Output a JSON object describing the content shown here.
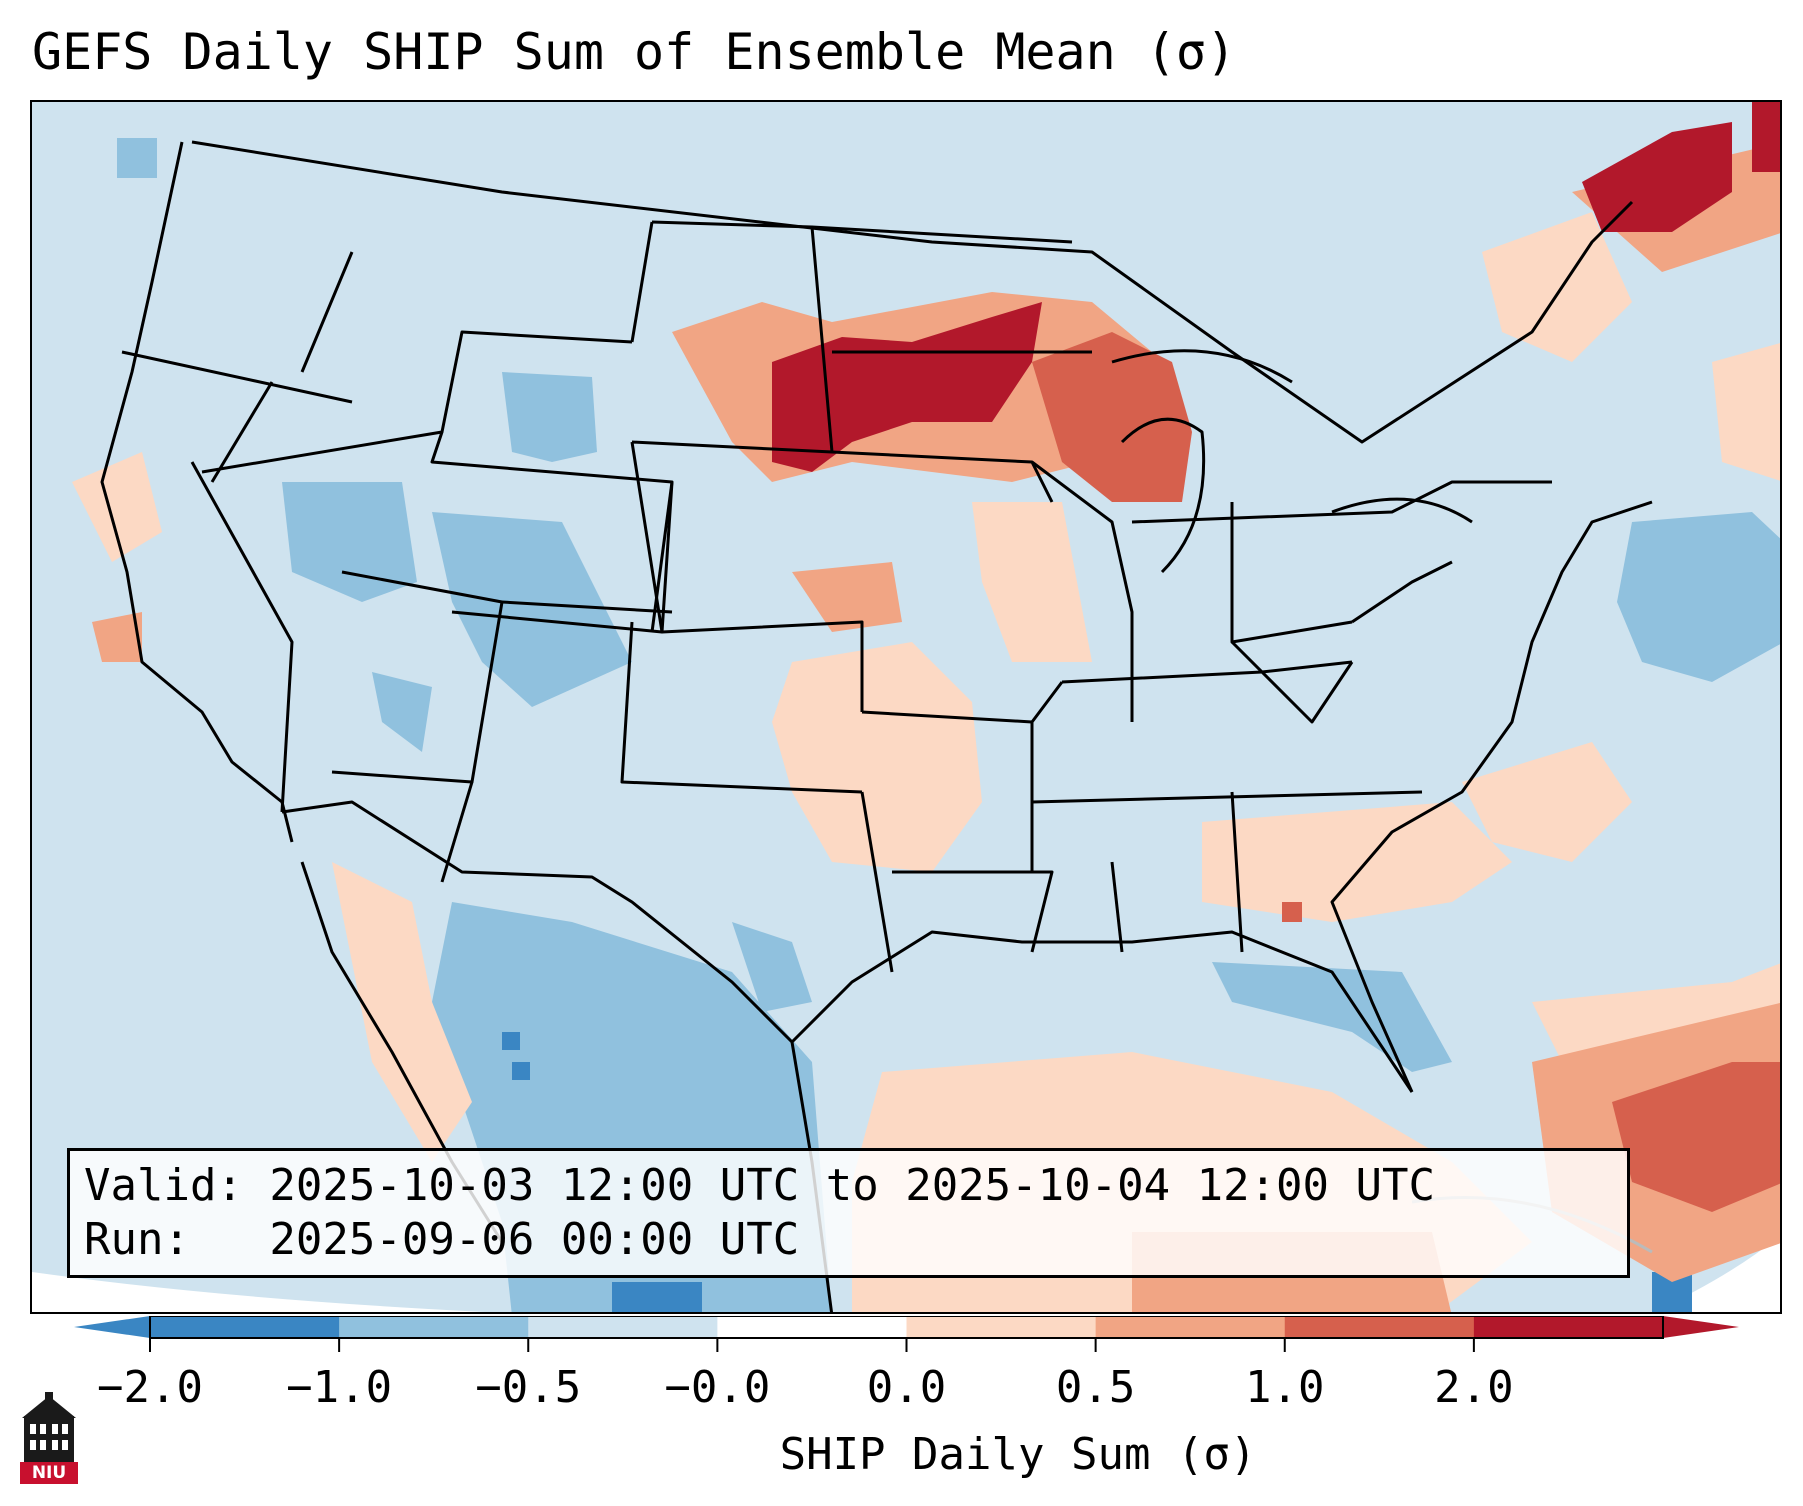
{
  "title": "GEFS Daily SHIP Sum of Ensemble Mean (σ)",
  "info": {
    "valid_line": "Valid: 2025-10-03 12:00 UTC to 2025-10-04 12:00 UTC",
    "run_line": "Run:   2025-09-06 00:00 UTC"
  },
  "colorbar": {
    "label": "SHIP Daily Sum (σ)",
    "ticks": [
      "−2.0",
      "−1.0",
      "−0.5",
      "−0.0",
      "0.0",
      "0.5",
      "1.0",
      "2.0"
    ],
    "colors": [
      "#3a86c3",
      "#90c1de",
      "#cfe3ef",
      "#ffffff",
      "#fcd9c4",
      "#f1a584",
      "#d6604d",
      "#b2182b"
    ]
  },
  "logo": {
    "text": "NIU",
    "icon": "niu-building-logo-icon"
  }
}
